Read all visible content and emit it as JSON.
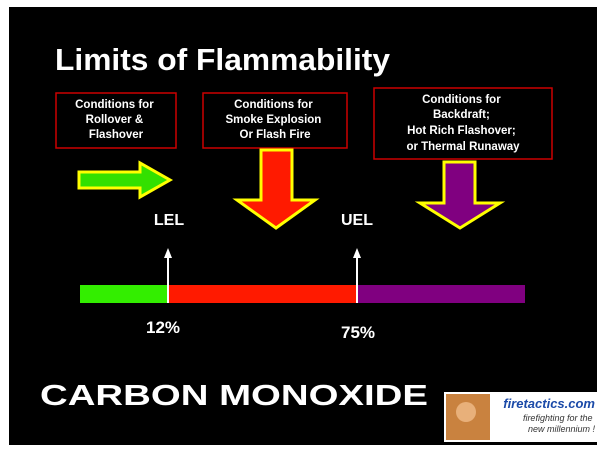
{
  "title": "Limits of Flammability",
  "boxes": [
    {
      "lines": [
        "Conditions for",
        "Rollover &",
        "Flashover"
      ]
    },
    {
      "lines": [
        "Conditions for",
        "Smoke Explosion",
        "Or Flash Fire"
      ]
    },
    {
      "lines": [
        "Conditions for",
        "Backdraft;",
        "Hot Rich Flashover;",
        "or Thermal Runaway"
      ]
    }
  ],
  "markers": [
    {
      "name": "LEL",
      "value": "12%"
    },
    {
      "name": "UEL",
      "value": "75%"
    }
  ],
  "subject": "CARBON MONOXIDE",
  "logo": {
    "site": "firetactics.com",
    "tagline": [
      "firefighting for the",
      "new millennium !"
    ]
  }
}
